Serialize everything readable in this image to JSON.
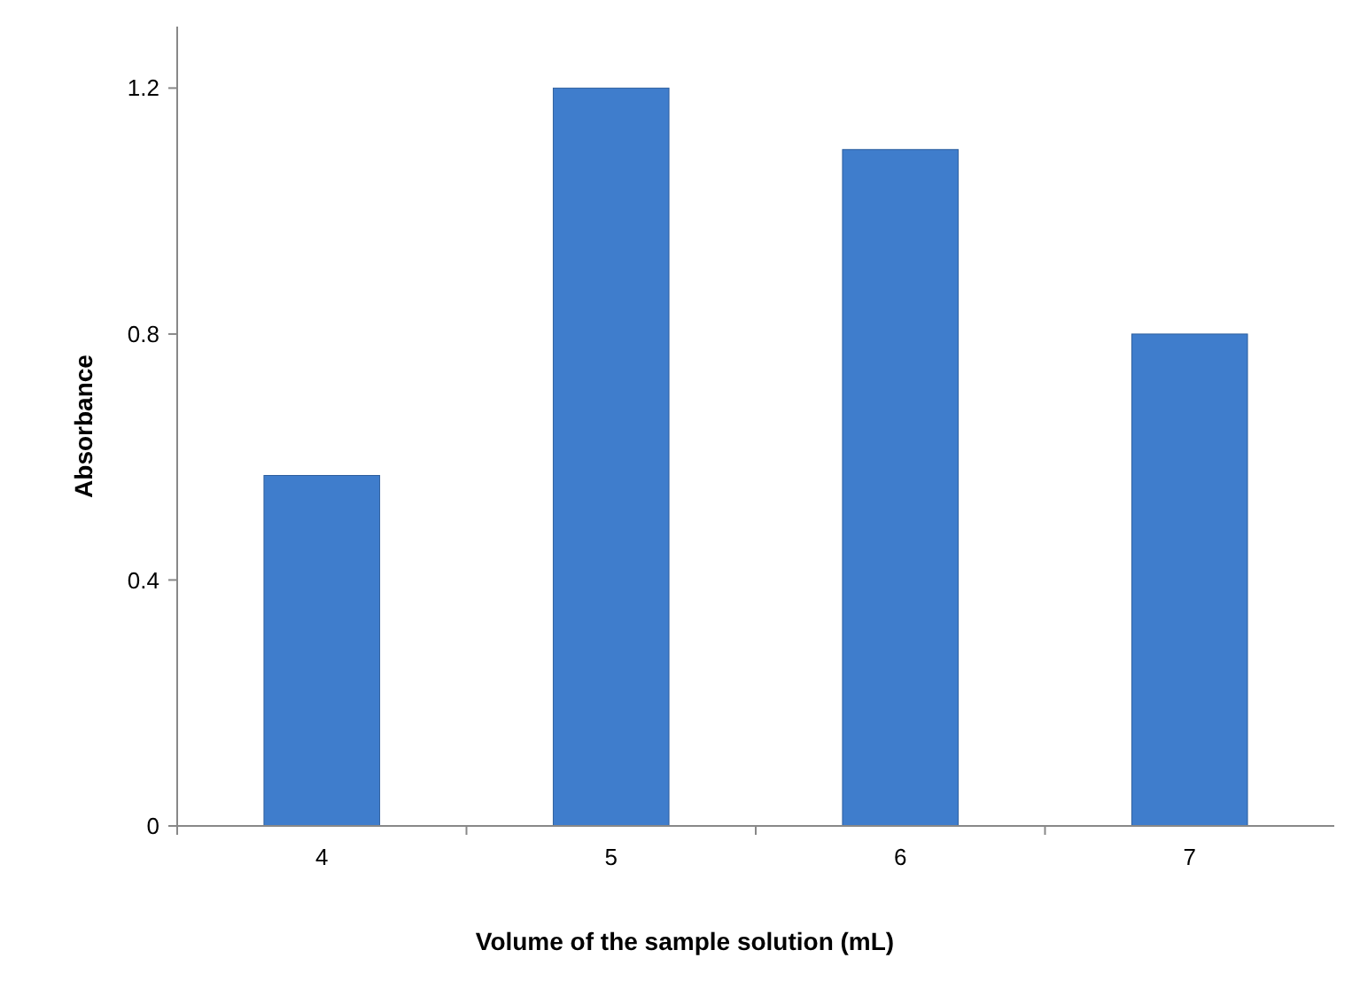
{
  "chart_data": {
    "type": "bar",
    "xlabel": "Volume of the sample solution (mL)",
    "ylabel": "Absorbance",
    "categories": [
      "4",
      "5",
      "6",
      "7"
    ],
    "values": [
      0.57,
      1.2,
      1.1,
      0.8
    ],
    "color": "#3f7dcc",
    "ylim": [
      0,
      1.3
    ],
    "yticks": [
      0,
      0.4,
      0.8,
      1.2
    ],
    "grid": false
  }
}
